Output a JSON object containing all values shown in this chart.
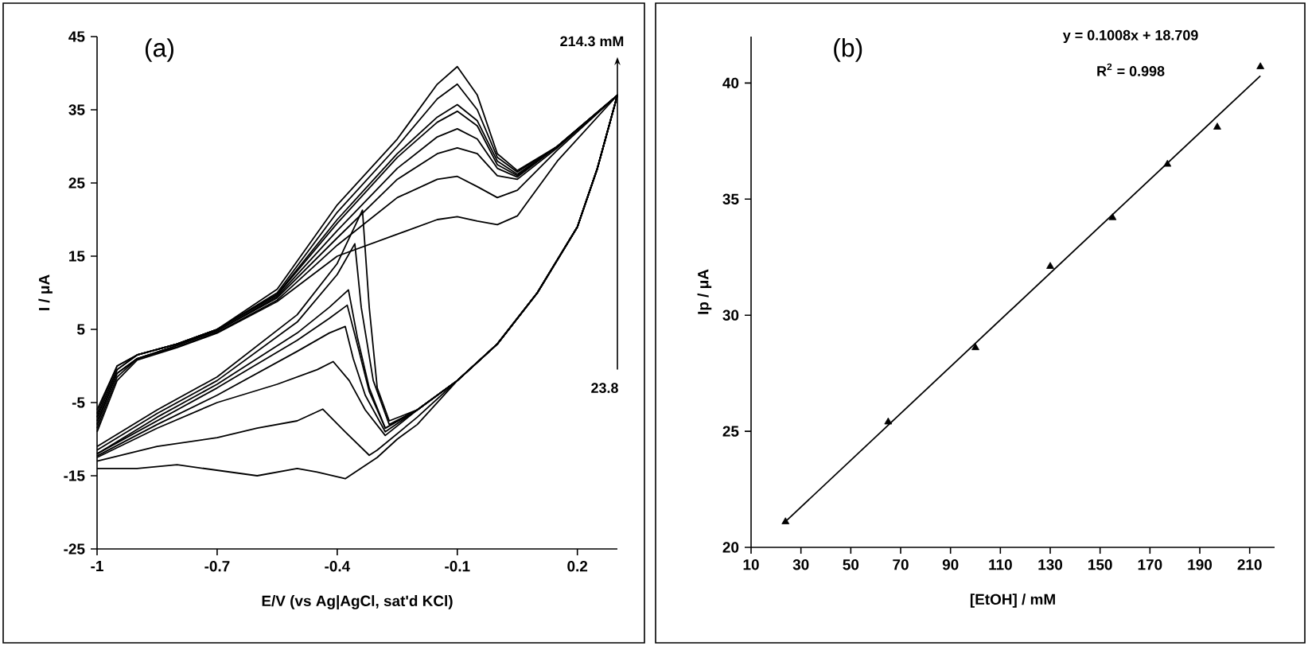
{
  "chart_data": [
    {
      "type": "line",
      "title": "(a)",
      "xlabel": "E/V (vs Ag|AgCl, sat'd KCl)",
      "ylabel": "I / μA",
      "xlim": [
        -1,
        0.3
      ],
      "xticks": [
        -1,
        -0.7,
        -0.4,
        -0.1,
        0.2
      ],
      "ylim": [
        -25,
        45
      ],
      "yticks": [
        -25,
        -15,
        -5,
        5,
        15,
        25,
        35,
        45
      ],
      "annotations": [
        "214.3 mM",
        "23.8"
      ],
      "series": [
        {
          "color": "#000000",
          "x": [
            -1,
            -0.95,
            -0.9,
            -0.8,
            -0.7,
            -0.55,
            -0.4,
            -0.25,
            -0.15,
            -0.1,
            -0.05,
            0,
            0.05,
            0.15,
            0.3,
            0.25,
            0.2,
            0.1,
            0,
            -0.1,
            -0.2,
            -0.27,
            -0.3,
            -0.32,
            -0.337,
            -0.4,
            -0.5,
            -0.7,
            -0.85,
            -1
          ],
          "values": [
            -6,
            0,
            1.5,
            3,
            5,
            10.5,
            22,
            31,
            38.5,
            40.9,
            37,
            29,
            26.7,
            30,
            37,
            27,
            19,
            10,
            3,
            -2,
            -6,
            -7.5,
            -3,
            8,
            21.3,
            14,
            7,
            -1.5,
            -6,
            -11
          ]
        },
        {
          "color": "#000000",
          "x": [
            -1,
            -0.95,
            -0.9,
            -0.8,
            -0.7,
            -0.55,
            -0.4,
            -0.25,
            -0.15,
            -0.1,
            -0.05,
            0,
            0.05,
            0.15,
            0.3,
            0.25,
            0.2,
            0.1,
            0,
            -0.1,
            -0.2,
            -0.27,
            -0.31,
            -0.34,
            -0.356,
            -0.4,
            -0.5,
            -0.7,
            -0.85,
            -1
          ],
          "values": [
            -6.5,
            0,
            1.5,
            3,
            5,
            10,
            21,
            30,
            36.5,
            38.5,
            35,
            28.5,
            26.5,
            30,
            37,
            27,
            19,
            10,
            3,
            -2,
            -6,
            -8,
            -2,
            8,
            16.7,
            12.5,
            6,
            -2,
            -6.5,
            -11.5
          ]
        },
        {
          "color": "#000000",
          "x": [
            -1,
            -0.95,
            -0.9,
            -0.8,
            -0.7,
            -0.55,
            -0.4,
            -0.25,
            -0.15,
            -0.1,
            -0.05,
            0,
            0.05,
            0.15,
            0.3,
            0.25,
            0.2,
            0.1,
            0,
            -0.1,
            -0.2,
            -0.28,
            -0.32,
            -0.35,
            -0.372,
            -0.42,
            -0.5,
            -0.7,
            -0.85,
            -1
          ],
          "values": [
            -7,
            -0.5,
            1.5,
            3,
            5,
            9.8,
            20,
            29,
            34,
            35.7,
            33.5,
            28,
            26.2,
            30,
            37,
            27,
            19,
            10,
            3,
            -2,
            -6,
            -8.5,
            -3,
            4,
            10.4,
            8,
            4.5,
            -2.5,
            -7,
            -12
          ]
        },
        {
          "color": "#000000",
          "x": [
            -1,
            -0.95,
            -0.9,
            -0.8,
            -0.7,
            -0.55,
            -0.4,
            -0.25,
            -0.15,
            -0.1,
            -0.05,
            0,
            0.05,
            0.15,
            0.3,
            0.25,
            0.2,
            0.1,
            0,
            -0.1,
            -0.2,
            -0.28,
            -0.32,
            -0.35,
            -0.375,
            -0.42,
            -0.5,
            -0.7,
            -0.85,
            -1
          ],
          "values": [
            -7,
            -0.5,
            1.5,
            3,
            5,
            9.7,
            19.5,
            28.5,
            33.3,
            34.8,
            32.8,
            27.5,
            26,
            30,
            37,
            27,
            19,
            10,
            3,
            -2,
            -6,
            -8.5,
            -3.5,
            3,
            8.3,
            6.5,
            3.5,
            -3,
            -7.5,
            -12
          ]
        },
        {
          "color": "#000000",
          "x": [
            -1,
            -0.95,
            -0.9,
            -0.8,
            -0.7,
            -0.55,
            -0.4,
            -0.25,
            -0.15,
            -0.1,
            -0.05,
            0,
            0.05,
            0.15,
            0.3,
            0.25,
            0.2,
            0.1,
            0,
            -0.1,
            -0.2,
            -0.28,
            -0.33,
            -0.36,
            -0.38,
            -0.42,
            -0.5,
            -0.7,
            -0.85,
            -1
          ],
          "values": [
            -7.5,
            -1,
            1,
            2.8,
            4.8,
            9.5,
            18.5,
            27,
            31.3,
            32.4,
            31,
            27,
            25.8,
            30,
            37,
            27,
            19,
            10,
            3,
            -2,
            -6,
            -9,
            -4,
            1,
            5.4,
            4.5,
            2,
            -4,
            -8,
            -12.3
          ]
        },
        {
          "color": "#000000",
          "x": [
            -1,
            -0.95,
            -0.9,
            -0.8,
            -0.7,
            -0.55,
            -0.4,
            -0.25,
            -0.15,
            -0.1,
            -0.05,
            0,
            0.05,
            0.15,
            0.3,
            0.25,
            0.2,
            0.1,
            0,
            -0.1,
            -0.2,
            -0.28,
            -0.33,
            -0.37,
            -0.41,
            -0.45,
            -0.55,
            -0.7,
            -0.85,
            -1
          ],
          "values": [
            -8,
            -1,
            1,
            2.8,
            4.8,
            9.3,
            17.5,
            25.5,
            29,
            29.8,
            29,
            26,
            25.5,
            29.8,
            37,
            27,
            19,
            10,
            3,
            -2,
            -6,
            -9.5,
            -6,
            -2,
            0.6,
            -0.5,
            -2.5,
            -5,
            -8.5,
            -12.5
          ]
        },
        {
          "color": "#000000",
          "x": [
            -1,
            -0.95,
            -0.9,
            -0.8,
            -0.7,
            -0.55,
            -0.4,
            -0.25,
            -0.15,
            -0.1,
            -0.05,
            0,
            0.05,
            0.15,
            0.3,
            0.25,
            0.2,
            0.1,
            0,
            -0.1,
            -0.2,
            -0.3,
            -0.32,
            -0.38,
            -0.436,
            -0.5,
            -0.6,
            -0.7,
            -0.85,
            -1
          ],
          "values": [
            -8.5,
            -1.5,
            1,
            2.6,
            4.6,
            9,
            16.5,
            23,
            25.5,
            25.9,
            24.5,
            23,
            24,
            29.5,
            37,
            27,
            19,
            10,
            3,
            -2,
            -7,
            -11.5,
            -12.2,
            -9,
            -5.9,
            -7.5,
            -8.5,
            -9.8,
            -11,
            -13
          ]
        },
        {
          "color": "#000000",
          "x": [
            -1,
            -0.95,
            -0.9,
            -0.8,
            -0.7,
            -0.55,
            -0.4,
            -0.25,
            -0.15,
            -0.1,
            -0.05,
            0,
            0.05,
            0.15,
            0.3,
            0.25,
            0.2,
            0.1,
            0,
            -0.1,
            -0.2,
            -0.25,
            -0.3,
            -0.38,
            -0.45,
            -0.5,
            -0.6,
            -0.8,
            -0.9,
            -1
          ],
          "values": [
            -9,
            -2,
            0.8,
            2.5,
            4.5,
            8.8,
            15,
            18,
            20,
            20.4,
            19.8,
            19.3,
            20.5,
            28,
            37,
            27,
            19,
            10,
            3,
            -2,
            -8,
            -10,
            -12.5,
            -15.4,
            -14.5,
            -14,
            -15,
            -13.5,
            -14,
            -14
          ]
        }
      ]
    },
    {
      "type": "scatter",
      "title": "(b)",
      "xlabel": "[EtOH] / mM",
      "ylabel": "Ip / μA",
      "xlim": [
        10,
        220
      ],
      "xticks": [
        10,
        30,
        50,
        70,
        90,
        110,
        130,
        150,
        170,
        190,
        210
      ],
      "ylim": [
        20,
        42
      ],
      "yticks": [
        20,
        25,
        30,
        35,
        40
      ],
      "annotations": [
        "y = 0.1008x + 18.709",
        "R$^{2}$ = 0.998"
      ],
      "series": [
        {
          "type": "scatter",
          "marker": "triangle",
          "color": "#000000",
          "x": [
            23.8,
            65,
            100,
            130,
            155,
            177,
            197,
            214.3
          ],
          "values": [
            21.1,
            25.4,
            28.6,
            32.1,
            34.2,
            36.5,
            38.1,
            40.7
          ]
        },
        {
          "type": "line",
          "color": "#000000",
          "x": [
            23.8,
            214.3
          ],
          "values": [
            21.11,
            40.31
          ]
        }
      ]
    }
  ]
}
